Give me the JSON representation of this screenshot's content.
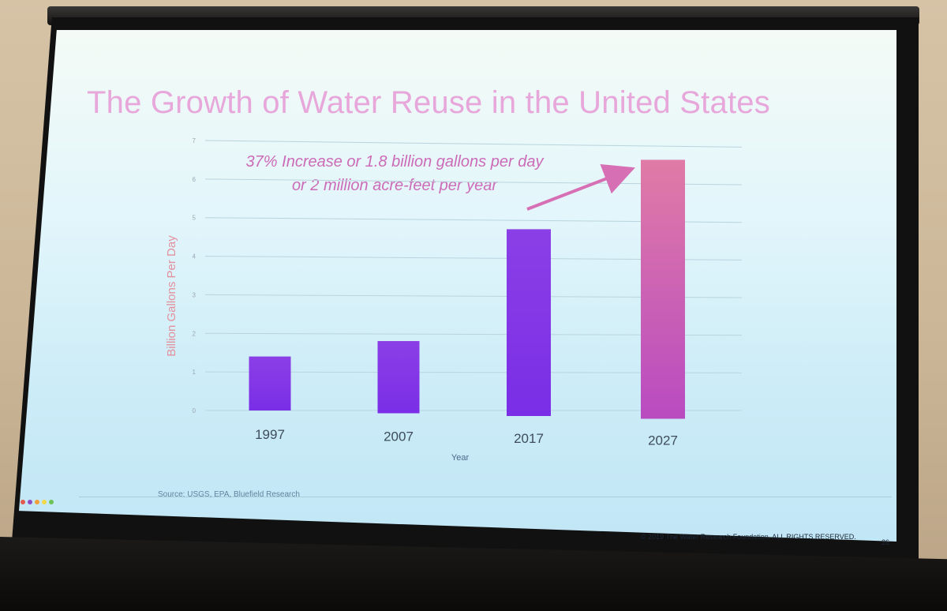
{
  "slide": {
    "title": "The Growth of Water Reuse in the United States",
    "annotation_line1": "37% Increase or 1.8 billion gallons per day",
    "annotation_line2": "or 2 million acre-feet per year",
    "source": "Source: USGS, EPA, Bluefield Research",
    "copyright": "© 2019 The Water Research Foundation. ALL RIGHTS RESERVED.",
    "page_number": "26"
  },
  "colors": {
    "title": "#e8a7da",
    "annotation": "#cc6bb7",
    "bar": "#8a3ee8",
    "bar_highlight": "#c85fb8",
    "axis_label": "#e3909c"
  },
  "chart_data": {
    "type": "bar",
    "title": "The Growth of Water Reuse in the United States",
    "xlabel": "Year",
    "ylabel": "Billion Gallons Per Day",
    "categories": [
      "1997",
      "2007",
      "2017",
      "2027"
    ],
    "values": [
      1.4,
      1.8,
      4.7,
      6.5
    ],
    "ylim": [
      0,
      7
    ],
    "yticks": [
      "0",
      "1",
      "2",
      "3",
      "4",
      "5",
      "6",
      "7"
    ],
    "grid": true,
    "annotation": "37% Increase or 1.8 billion gallons per day or 2 million acre-feet per year"
  }
}
